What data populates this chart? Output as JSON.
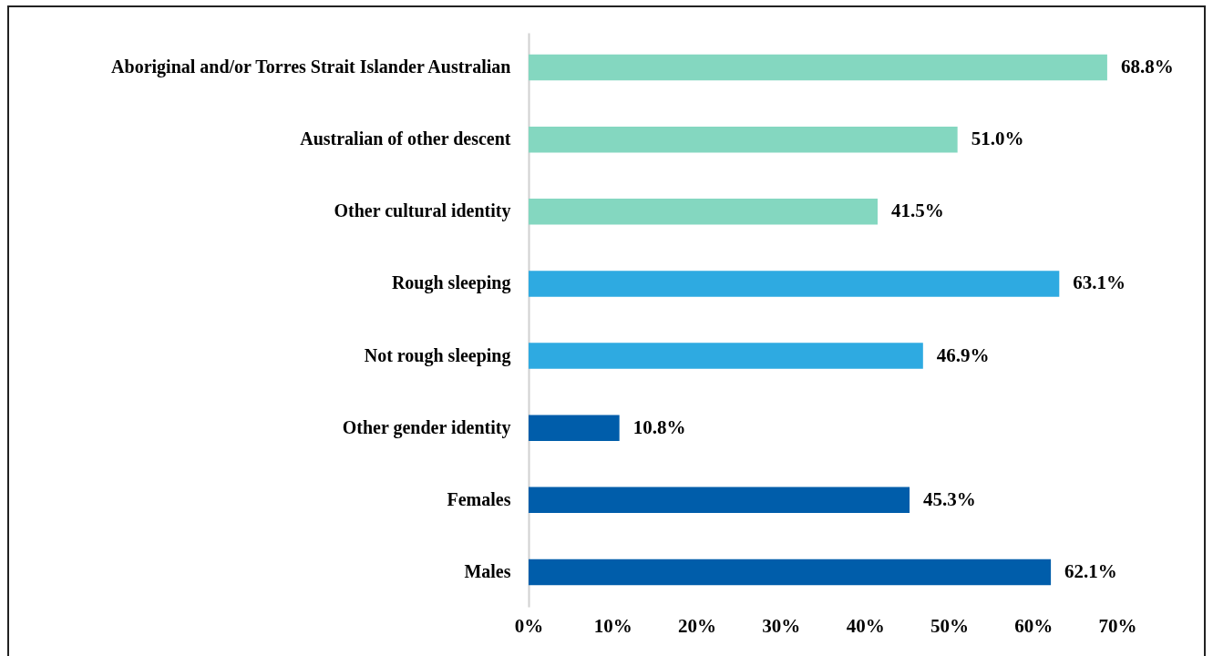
{
  "chart_data": {
    "type": "bar",
    "orientation": "horizontal",
    "categories": [
      "Aboriginal and/or Torres Strait Islander Australian",
      "Australian of other descent",
      "Other cultural identity",
      "Rough sleeping",
      "Not rough sleeping",
      "Other gender identity",
      "Females",
      "Males"
    ],
    "values": [
      68.8,
      51.0,
      41.5,
      63.1,
      46.9,
      10.8,
      45.3,
      62.1
    ],
    "colors": [
      "#84d7c0",
      "#84d7c0",
      "#84d7c0",
      "#2eaae1",
      "#2eaae1",
      "#005daa",
      "#005daa",
      "#005daa"
    ],
    "value_labels": [
      "68.8%",
      "51.0%",
      "41.5%",
      "63.1%",
      "46.9%",
      "10.8%",
      "45.3%",
      "62.1%"
    ],
    "xlim": [
      0,
      70
    ],
    "xticks": [
      {
        "value": 0,
        "label": "0%"
      },
      {
        "value": 10,
        "label": "10%"
      },
      {
        "value": 20,
        "label": "20%"
      },
      {
        "value": 30,
        "label": "30%"
      },
      {
        "value": 40,
        "label": "40%"
      },
      {
        "value": 50,
        "label": "50%"
      },
      {
        "value": 60,
        "label": "60%"
      },
      {
        "value": 70,
        "label": "70%"
      }
    ],
    "grid": false
  }
}
